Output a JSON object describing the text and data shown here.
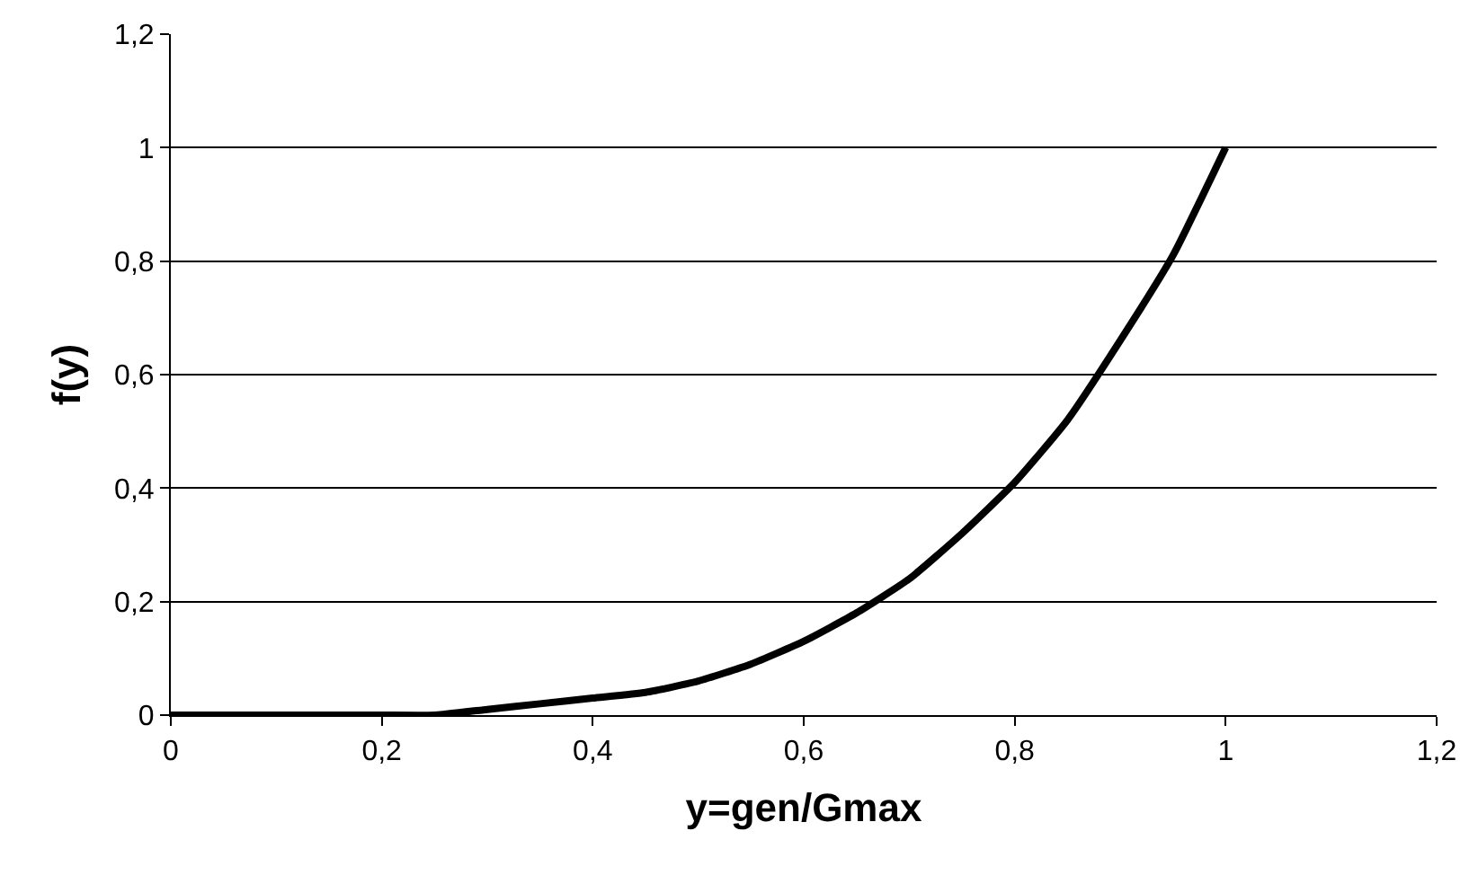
{
  "chart_data": {
    "type": "line",
    "xlabel": "y=gen/Gmax",
    "ylabel": "f(y)",
    "x": [
      0,
      0.05,
      0.1,
      0.15,
      0.2,
      0.25,
      0.3,
      0.35,
      0.4,
      0.45,
      0.5,
      0.55,
      0.6,
      0.65,
      0.7,
      0.75,
      0.8,
      0.85,
      0.9,
      0.95,
      1
    ],
    "series": [
      {
        "color": "#000000",
        "values": [
          0,
          0,
          0,
          0,
          0,
          0,
          0.01,
          0.02,
          0.03,
          0.04,
          0.06,
          0.09,
          0.13,
          0.18,
          0.24,
          0.32,
          0.41,
          0.52,
          0.66,
          0.81,
          1
        ]
      }
    ],
    "xlim": [
      0,
      1.2
    ],
    "ylim": [
      0,
      1.2
    ],
    "xticks": [
      0,
      {
        "value": 0.2,
        "label": "0,2"
      },
      {
        "value": 0.4,
        "label": "0,4"
      },
      {
        "value": 0.6,
        "label": "0,6"
      },
      {
        "value": 0.8,
        "label": "0,8"
      },
      1,
      {
        "value": 1.2,
        "label": "1,2"
      }
    ],
    "yticks": [
      0,
      {
        "value": 0.2,
        "label": "0,2"
      },
      {
        "value": 0.4,
        "label": "0,4"
      },
      {
        "value": 0.6,
        "label": "0,6"
      },
      {
        "value": 0.8,
        "label": "0,8"
      },
      1,
      {
        "value": 1.2,
        "label": "1,2"
      }
    ],
    "grid": "y",
    "marker": "none",
    "line_style": "solid"
  }
}
